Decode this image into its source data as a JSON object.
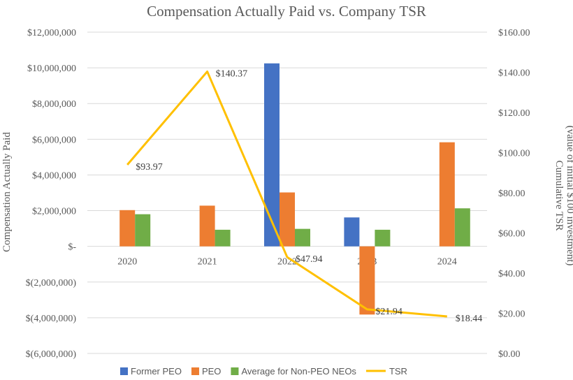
{
  "chart_data": {
    "type": "bar",
    "title": "Compensation Actually Paid vs. Company TSR",
    "categories": [
      "2020",
      "2021",
      "2022",
      "2023",
      "2024"
    ],
    "ylabel": "Compensation Actually Paid",
    "y2label_line1": "Cumulative TSR",
    "y2label_line2": "(value of initial $100 investment)",
    "ylim": [
      -6000000,
      12000000
    ],
    "y2lim": [
      0,
      160
    ],
    "yticks": [
      12000000,
      10000000,
      8000000,
      6000000,
      4000000,
      2000000,
      0,
      -2000000,
      -4000000,
      -6000000
    ],
    "ytick_labels": [
      "$12,000,000",
      "$10,000,000",
      "$8,000,000",
      "$6,000,000",
      "$4,000,000",
      "$2,000,000",
      "$-",
      "$(2,000,000)",
      "$(4,000,000)",
      "$(6,000,000)"
    ],
    "y2ticks": [
      160,
      140,
      120,
      100,
      80,
      60,
      40,
      20,
      0
    ],
    "y2tick_labels": [
      "$160.00",
      "$140.00",
      "$120.00",
      "$100.00",
      "$80.00",
      "$60.00",
      "$40.00",
      "$20.00",
      "$0.00"
    ],
    "series": [
      {
        "name": "Former PEO",
        "color": "#4472c4",
        "values": [
          null,
          null,
          10250000,
          1620000,
          null
        ]
      },
      {
        "name": "PEO",
        "color": "#ed7d31",
        "values": [
          2030000,
          2280000,
          3020000,
          -3820000,
          5830000
        ]
      },
      {
        "name": "Average for Non-PEO NEOs",
        "color": "#70ad47",
        "values": [
          1800000,
          930000,
          980000,
          930000,
          2130000
        ]
      }
    ],
    "line_series": {
      "name": "TSR",
      "color": "#ffc000",
      "values": [
        93.97,
        140.37,
        47.94,
        21.94,
        18.44
      ],
      "labels": [
        "$93.97",
        "$140.37",
        "$47.94",
        "$21.94",
        "$18.44"
      ]
    },
    "grid": true,
    "legend": "bottom"
  }
}
